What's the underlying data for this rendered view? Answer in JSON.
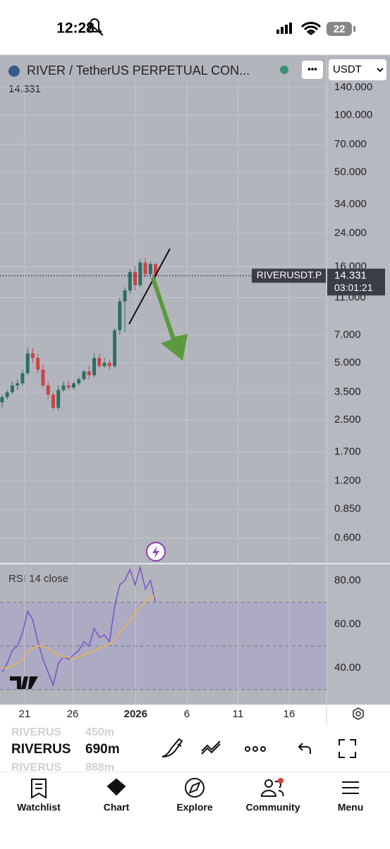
{
  "status_bar": {
    "time": "12:28",
    "battery": "22"
  },
  "header": {
    "title": "RIVER / TetherUS PERPETUAL CON...",
    "more": "•••",
    "currency": "USDT"
  },
  "chart_data": {
    "type": "candlestick",
    "log_scale": true,
    "grid": true,
    "last_price": 14.331,
    "symbol_tag": "RIVERUSDT.P",
    "countdown": "03:01:21",
    "up_color": "#2f6f64",
    "down_color": "#c8454a",
    "categories": [
      null,
      null,
      null,
      null,
      null,
      null,
      null,
      null,
      null,
      null,
      null,
      null,
      null,
      null,
      null,
      null,
      null,
      null,
      null,
      null,
      null,
      null,
      null,
      null,
      null,
      null,
      null,
      null,
      null,
      null,
      null
    ],
    "open": [
      3.1,
      3.3,
      3.5,
      3.8,
      3.9,
      4.4,
      5.6,
      5.3,
      4.6,
      3.8,
      3.4,
      2.9,
      3.6,
      3.8,
      3.7,
      3.9,
      4.1,
      4.5,
      4.3,
      5.3,
      4.8,
      5.0,
      4.8,
      7.4,
      10.5,
      12.0,
      15.0,
      12.8,
      16.8,
      14.6,
      16.5
    ],
    "high": [
      3.4,
      3.6,
      4.0,
      4.1,
      4.6,
      6.0,
      6.0,
      5.6,
      4.9,
      4.0,
      3.5,
      3.8,
      4.0,
      4.0,
      4.0,
      4.2,
      4.6,
      4.8,
      5.6,
      5.6,
      5.3,
      5.2,
      7.6,
      11.0,
      12.5,
      15.5,
      16.2,
      17.5,
      17.8,
      17.0,
      16.8
    ],
    "low": [
      2.9,
      3.2,
      3.4,
      3.6,
      3.8,
      4.3,
      5.0,
      4.4,
      3.7,
      3.2,
      2.8,
      2.8,
      3.5,
      3.6,
      3.6,
      3.8,
      4.0,
      4.1,
      4.2,
      4.7,
      4.7,
      4.6,
      4.7,
      7.0,
      7.2,
      11.5,
      12.0,
      12.5,
      14.0,
      14.0,
      13.8
    ],
    "close": [
      3.3,
      3.5,
      3.8,
      3.9,
      4.4,
      5.6,
      5.3,
      4.6,
      3.8,
      3.4,
      2.9,
      3.6,
      3.8,
      3.7,
      3.9,
      4.1,
      4.5,
      4.3,
      5.3,
      4.8,
      5.0,
      4.8,
      7.4,
      10.5,
      12.0,
      15.0,
      12.8,
      16.8,
      14.6,
      16.5,
      14.331
    ],
    "xlim": [
      -0.4,
      63.4
    ],
    "xticks": [
      {
        "value": 4.4,
        "label": "21"
      },
      {
        "value": 13.8,
        "label": "26"
      },
      {
        "value": 26.1,
        "label": "2026"
      },
      {
        "value": 36.1,
        "label": "6"
      },
      {
        "value": 46.1,
        "label": "11"
      },
      {
        "value": 56.1,
        "label": "16"
      }
    ],
    "ylim": [
      0.44,
      155
    ],
    "yticks": [
      {
        "value": 140,
        "label": "140.000"
      },
      {
        "value": 100,
        "label": "100.000"
      },
      {
        "value": 70,
        "label": "70.000"
      },
      {
        "value": 50,
        "label": "50.000"
      },
      {
        "value": 34,
        "label": "34.000"
      },
      {
        "value": 24,
        "label": "24.000"
      },
      {
        "value": 16,
        "label": "16.000"
      },
      {
        "value": 11,
        "label": "11.000"
      },
      {
        "value": 7,
        "label": "7.000"
      },
      {
        "value": 5,
        "label": "5.000"
      },
      {
        "value": 3.5,
        "label": "3.500"
      },
      {
        "value": 2.5,
        "label": "2.500"
      },
      {
        "value": 1.7,
        "label": "1.700"
      },
      {
        "value": 1.2,
        "label": "1.200"
      },
      {
        "value": 0.85,
        "label": "0.850"
      },
      {
        "value": 0.6,
        "label": "0.600"
      }
    ]
  },
  "rsi": {
    "title": "RSI 14 close",
    "ylim": [
      23.2,
      87.7
    ],
    "yticks": [
      {
        "value": 80,
        "label": "80.00"
      },
      {
        "value": 60,
        "label": "60.00"
      },
      {
        "value": 40,
        "label": "40.00"
      }
    ],
    "band": [
      30,
      70
    ],
    "levels": [
      70,
      50,
      30
    ],
    "series": [
      {
        "color": "#7b52c9",
        "values": [
          38,
          42,
          48,
          50,
          56,
          66,
          62,
          52,
          44,
          38,
          32,
          42,
          45,
          44,
          46,
          48,
          52,
          50,
          58,
          54,
          55,
          52,
          68,
          78,
          80,
          85,
          78,
          86,
          76,
          80,
          70
        ]
      },
      {
        "color": "#e8b84a",
        "values": [
          40,
          40,
          41,
          42,
          44,
          47,
          49,
          50,
          50,
          49,
          47,
          46,
          45,
          45,
          44,
          45,
          46,
          47,
          48,
          49,
          50,
          51,
          53,
          56,
          59,
          62,
          65,
          68,
          70,
          72,
          73
        ]
      }
    ]
  },
  "toolbar": {
    "picker": [
      {
        "symbol": "RIVERUS",
        "value": "450m"
      },
      {
        "symbol": "RIVERUS",
        "value": "690m"
      },
      {
        "symbol": "RIVERUS",
        "value": "888m"
      }
    ]
  },
  "tabs": [
    "Watchlist",
    "Chart",
    "Explore",
    "Community",
    "Menu"
  ]
}
